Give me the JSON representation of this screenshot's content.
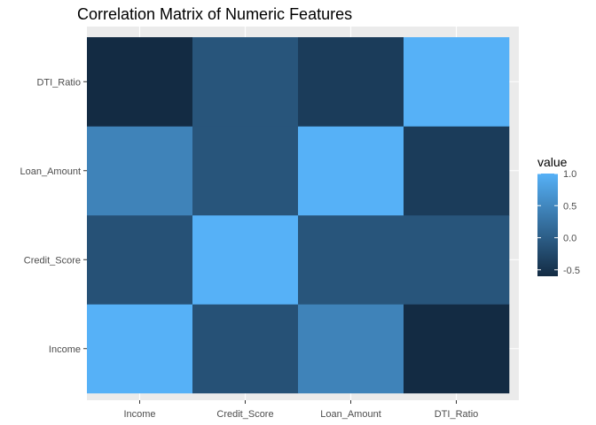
{
  "chart_data": {
    "type": "heatmap",
    "title": "Correlation Matrix of Numeric Features",
    "xlabel": "",
    "ylabel": "",
    "x_categories": [
      "Income",
      "Credit_Score",
      "Loan_Amount",
      "DTI_Ratio"
    ],
    "y_categories": [
      "Income",
      "Credit_Score",
      "Loan_Amount",
      "DTI_Ratio"
    ],
    "cells": [
      {
        "x": "Income",
        "y": "Income",
        "value": 1.0
      },
      {
        "x": "Credit_Score",
        "y": "Income",
        "value": -0.15
      },
      {
        "x": "Loan_Amount",
        "y": "Income",
        "value": 0.45
      },
      {
        "x": "DTI_Ratio",
        "y": "Income",
        "value": -0.6
      },
      {
        "x": "Income",
        "y": "Credit_Score",
        "value": -0.15
      },
      {
        "x": "Credit_Score",
        "y": "Credit_Score",
        "value": 1.0
      },
      {
        "x": "Loan_Amount",
        "y": "Credit_Score",
        "value": -0.1
      },
      {
        "x": "DTI_Ratio",
        "y": "Credit_Score",
        "value": -0.1
      },
      {
        "x": "Income",
        "y": "Loan_Amount",
        "value": 0.45
      },
      {
        "x": "Credit_Score",
        "y": "Loan_Amount",
        "value": -0.1
      },
      {
        "x": "Loan_Amount",
        "y": "Loan_Amount",
        "value": 1.0
      },
      {
        "x": "DTI_Ratio",
        "y": "Loan_Amount",
        "value": -0.4
      },
      {
        "x": "Income",
        "y": "DTI_Ratio",
        "value": -0.6
      },
      {
        "x": "Credit_Score",
        "y": "DTI_Ratio",
        "value": -0.1
      },
      {
        "x": "Loan_Amount",
        "y": "DTI_Ratio",
        "value": -0.4
      },
      {
        "x": "DTI_Ratio",
        "y": "DTI_Ratio",
        "value": 1.0
      }
    ],
    "legend": {
      "title": "value",
      "placement": "right",
      "breaks": [
        1.0,
        0.5,
        0.0,
        -0.5
      ],
      "break_labels": [
        "1.0",
        "0.5",
        "0.0",
        "-0.5"
      ],
      "range": [
        -0.6,
        1.0
      ]
    },
    "colors": {
      "low": "#132B43",
      "high": "#56B1F7",
      "panel_background": "#EBEBEB",
      "grid": "#FFFFFF"
    },
    "grid": true
  }
}
